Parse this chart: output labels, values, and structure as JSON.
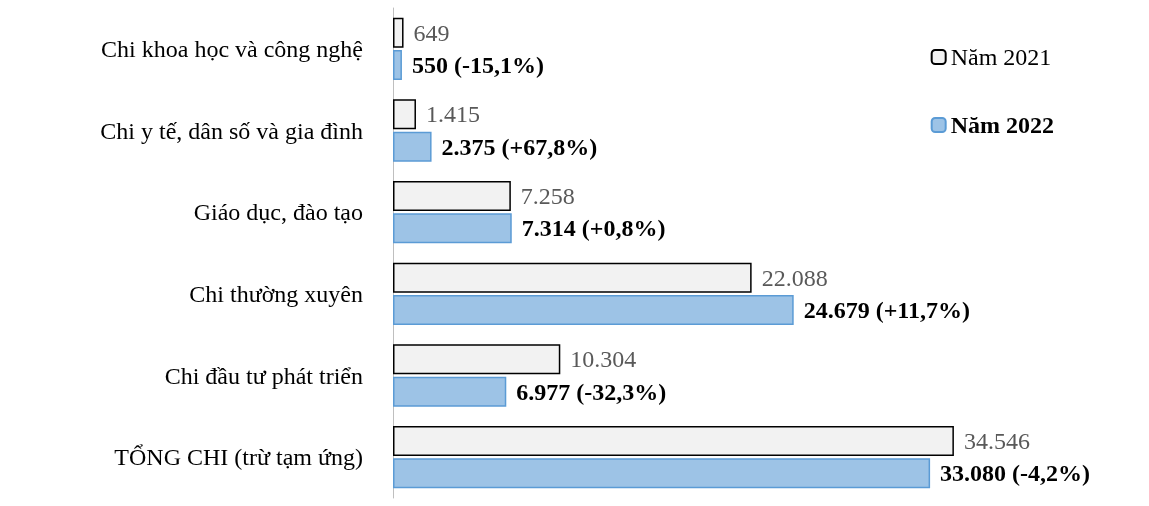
{
  "chart_data": {
    "type": "bar",
    "orientation": "horizontal",
    "categories": [
      "Chi khoa học và công nghệ",
      "Chi y tế, dân số và gia đình",
      "Giáo dục, đào tạo",
      "Chi thường xuyên",
      "Chi đầu tư phát triển",
      "TỔNG CHI (trừ tạm ứng)"
    ],
    "series": [
      {
        "name": "Năm 2021",
        "color": "#f2f2f2",
        "values": [
          649,
          1415,
          7258,
          22088,
          10304,
          34546
        ],
        "value_labels": [
          "649",
          "1.415",
          "7.258",
          "22.088",
          "10.304",
          "34.546"
        ]
      },
      {
        "name": "Năm 2022",
        "color": "#9dc3e6",
        "values": [
          550,
          2375,
          7314,
          24679,
          6977,
          33080
        ],
        "value_labels": [
          "550 (-15,1%)",
          "2.375 (+67,8%)",
          "7.314 (+0,8%)",
          "24.679 (+11,7%)",
          "6.977 (-32,3%)",
          "33.080 (-4,2%)"
        ]
      }
    ],
    "legend": "top right"
  }
}
